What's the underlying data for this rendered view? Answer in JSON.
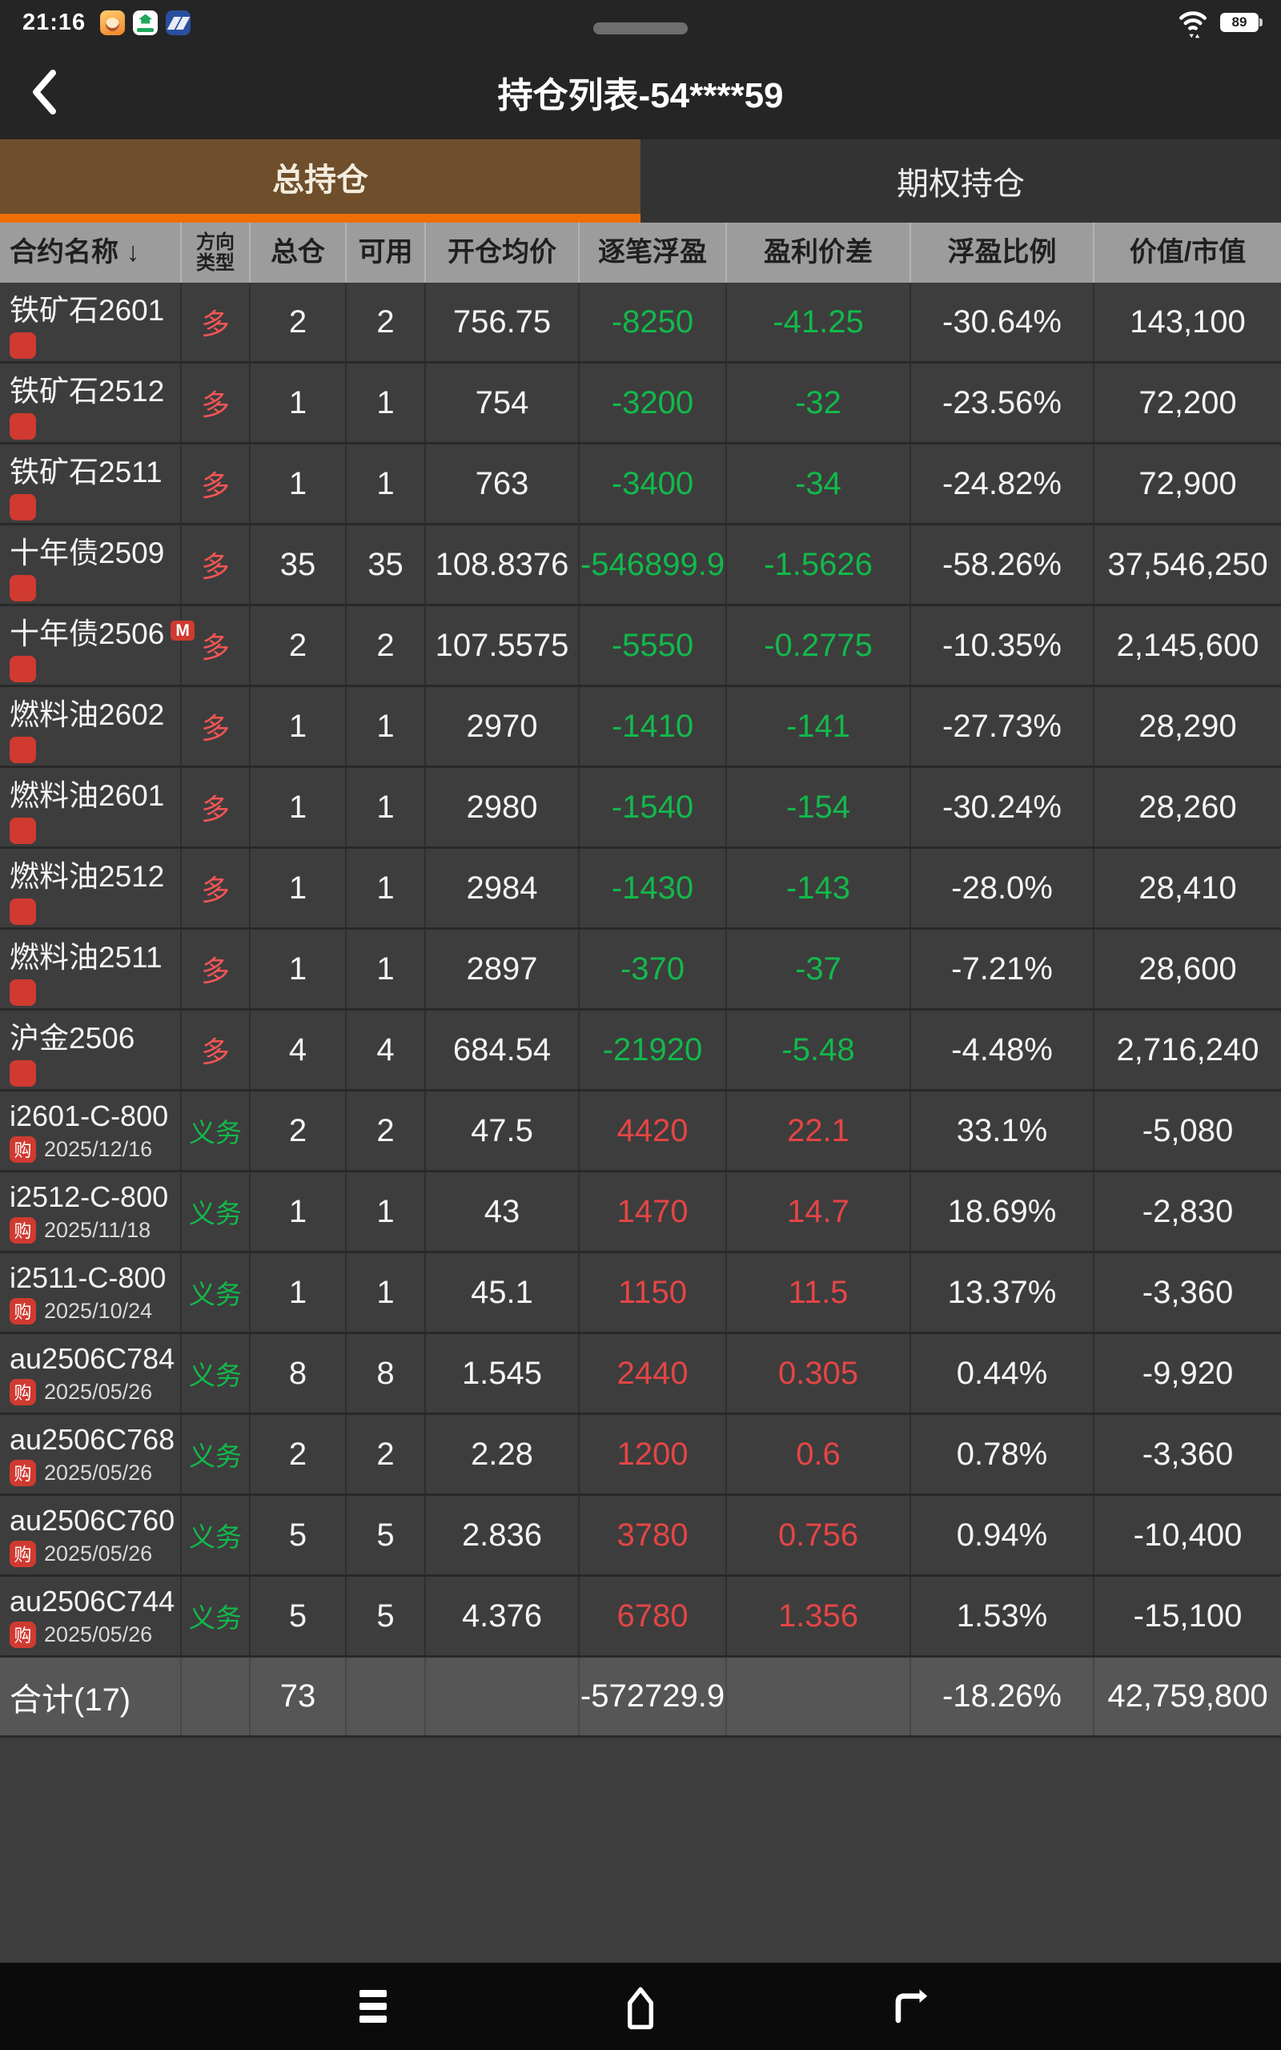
{
  "colors": {
    "accent_orange": "#ee6e00",
    "loss_green": "#12b94b",
    "profit_red": "#e54545",
    "active_tab_brown": "#6e4e2b",
    "badge_red": "#d03a30"
  },
  "status_bar": {
    "time": "21:16",
    "battery_percent": "89",
    "icons": [
      "app-notification-1",
      "app-notification-2",
      "app-notification-3",
      "wifi",
      "battery"
    ]
  },
  "header": {
    "title": "持仓列表-54****59",
    "back_icon": "chevron-left"
  },
  "tabs": [
    {
      "label": "总持仓",
      "active": true
    },
    {
      "label": "期权持仓",
      "active": false
    }
  ],
  "table": {
    "columns": [
      {
        "label": "合约名称 ↓",
        "small": false,
        "first": true
      },
      {
        "label": "方向\n类型",
        "small": true
      },
      {
        "label": "总仓"
      },
      {
        "label": "可用"
      },
      {
        "label": "开仓均价"
      },
      {
        "label": "逐笔浮盈"
      },
      {
        "label": "盈利价差"
      },
      {
        "label": "浮盈比例"
      },
      {
        "label": "价值/市值"
      }
    ],
    "rows": [
      {
        "name": "铁矿石2601",
        "m_badge": null,
        "badge": null,
        "date": null,
        "direction": "多",
        "direction_color": "red",
        "total": "2",
        "available": "2",
        "avg_price": "756.75",
        "float_pnl": "-8250",
        "price_diff": "-41.25",
        "pnl_color": "green",
        "ratio": "-30.64%",
        "value": "143,100"
      },
      {
        "name": "铁矿石2512",
        "m_badge": null,
        "badge": null,
        "date": null,
        "direction": "多",
        "direction_color": "red",
        "total": "1",
        "available": "1",
        "avg_price": "754",
        "float_pnl": "-3200",
        "price_diff": "-32",
        "pnl_color": "green",
        "ratio": "-23.56%",
        "value": "72,200"
      },
      {
        "name": "铁矿石2511",
        "m_badge": null,
        "badge": null,
        "date": null,
        "direction": "多",
        "direction_color": "red",
        "total": "1",
        "available": "1",
        "avg_price": "763",
        "float_pnl": "-3400",
        "price_diff": "-34",
        "pnl_color": "green",
        "ratio": "-24.82%",
        "value": "72,900"
      },
      {
        "name": "十年债2509",
        "m_badge": null,
        "badge": null,
        "date": null,
        "direction": "多",
        "direction_color": "red",
        "total": "35",
        "available": "35",
        "avg_price": "108.8376",
        "float_pnl": "-546899.9",
        "price_diff": "-1.5626",
        "pnl_color": "green",
        "ratio": "-58.26%",
        "value": "37,546,250"
      },
      {
        "name": "十年债2506",
        "m_badge": "M",
        "badge": null,
        "date": null,
        "direction": "多",
        "direction_color": "red",
        "total": "2",
        "available": "2",
        "avg_price": "107.5575",
        "float_pnl": "-5550",
        "price_diff": "-0.2775",
        "pnl_color": "green",
        "ratio": "-10.35%",
        "value": "2,145,600"
      },
      {
        "name": "燃料油2602",
        "m_badge": null,
        "badge": null,
        "date": null,
        "direction": "多",
        "direction_color": "red",
        "total": "1",
        "available": "1",
        "avg_price": "2970",
        "float_pnl": "-1410",
        "price_diff": "-141",
        "pnl_color": "green",
        "ratio": "-27.73%",
        "value": "28,290"
      },
      {
        "name": "燃料油2601",
        "m_badge": null,
        "badge": null,
        "date": null,
        "direction": "多",
        "direction_color": "red",
        "total": "1",
        "available": "1",
        "avg_price": "2980",
        "float_pnl": "-1540",
        "price_diff": "-154",
        "pnl_color": "green",
        "ratio": "-30.24%",
        "value": "28,260"
      },
      {
        "name": "燃料油2512",
        "m_badge": null,
        "badge": null,
        "date": null,
        "direction": "多",
        "direction_color": "red",
        "total": "1",
        "available": "1",
        "avg_price": "2984",
        "float_pnl": "-1430",
        "price_diff": "-143",
        "pnl_color": "green",
        "ratio": "-28.0%",
        "value": "28,410"
      },
      {
        "name": "燃料油2511",
        "m_badge": null,
        "badge": null,
        "date": null,
        "direction": "多",
        "direction_color": "red",
        "total": "1",
        "available": "1",
        "avg_price": "2897",
        "float_pnl": "-370",
        "price_diff": "-37",
        "pnl_color": "green",
        "ratio": "-7.21%",
        "value": "28,600"
      },
      {
        "name": "沪金2506",
        "m_badge": null,
        "badge": null,
        "date": null,
        "direction": "多",
        "direction_color": "red",
        "total": "4",
        "available": "4",
        "avg_price": "684.54",
        "float_pnl": "-21920",
        "price_diff": "-5.48",
        "pnl_color": "green",
        "ratio": "-4.48%",
        "value": "2,716,240"
      },
      {
        "name": "i2601-C-800",
        "m_badge": null,
        "badge": "购",
        "date": "2025/12/16",
        "direction": "义务",
        "direction_color": "green",
        "total": "2",
        "available": "2",
        "avg_price": "47.5",
        "float_pnl": "4420",
        "price_diff": "22.1",
        "pnl_color": "red",
        "ratio": "33.1%",
        "value": "-5,080"
      },
      {
        "name": "i2512-C-800",
        "m_badge": null,
        "badge": "购",
        "date": "2025/11/18",
        "direction": "义务",
        "direction_color": "green",
        "total": "1",
        "available": "1",
        "avg_price": "43",
        "float_pnl": "1470",
        "price_diff": "14.7",
        "pnl_color": "red",
        "ratio": "18.69%",
        "value": "-2,830"
      },
      {
        "name": "i2511-C-800",
        "m_badge": null,
        "badge": "购",
        "date": "2025/10/24",
        "direction": "义务",
        "direction_color": "green",
        "total": "1",
        "available": "1",
        "avg_price": "45.1",
        "float_pnl": "1150",
        "price_diff": "11.5",
        "pnl_color": "red",
        "ratio": "13.37%",
        "value": "-3,360"
      },
      {
        "name": "au2506C784",
        "m_badge": null,
        "badge": "购",
        "date": "2025/05/26",
        "direction": "义务",
        "direction_color": "green",
        "total": "8",
        "available": "8",
        "avg_price": "1.545",
        "float_pnl": "2440",
        "price_diff": "0.305",
        "pnl_color": "red",
        "ratio": "0.44%",
        "value": "-9,920"
      },
      {
        "name": "au2506C768",
        "m_badge": null,
        "badge": "购",
        "date": "2025/05/26",
        "direction": "义务",
        "direction_color": "green",
        "total": "2",
        "available": "2",
        "avg_price": "2.28",
        "float_pnl": "1200",
        "price_diff": "0.6",
        "pnl_color": "red",
        "ratio": "0.78%",
        "value": "-3,360"
      },
      {
        "name": "au2506C760",
        "m_badge": null,
        "badge": "购",
        "date": "2025/05/26",
        "direction": "义务",
        "direction_color": "green",
        "total": "5",
        "available": "5",
        "avg_price": "2.836",
        "float_pnl": "3780",
        "price_diff": "0.756",
        "pnl_color": "red",
        "ratio": "0.94%",
        "value": "-10,400"
      },
      {
        "name": "au2506C744",
        "m_badge": null,
        "badge": "购",
        "date": "2025/05/26",
        "direction": "义务",
        "direction_color": "green",
        "total": "5",
        "available": "5",
        "avg_price": "4.376",
        "float_pnl": "6780",
        "price_diff": "1.356",
        "pnl_color": "red",
        "ratio": "1.53%",
        "value": "-15,100"
      }
    ],
    "summary": {
      "label": "合计(17)",
      "total": "73",
      "float_pnl": "-572729.9",
      "float_pnl_color": "green",
      "ratio": "-18.26%",
      "value": "42,759,800"
    }
  },
  "nav_bar": {
    "buttons": [
      "menu",
      "home",
      "back"
    ]
  }
}
